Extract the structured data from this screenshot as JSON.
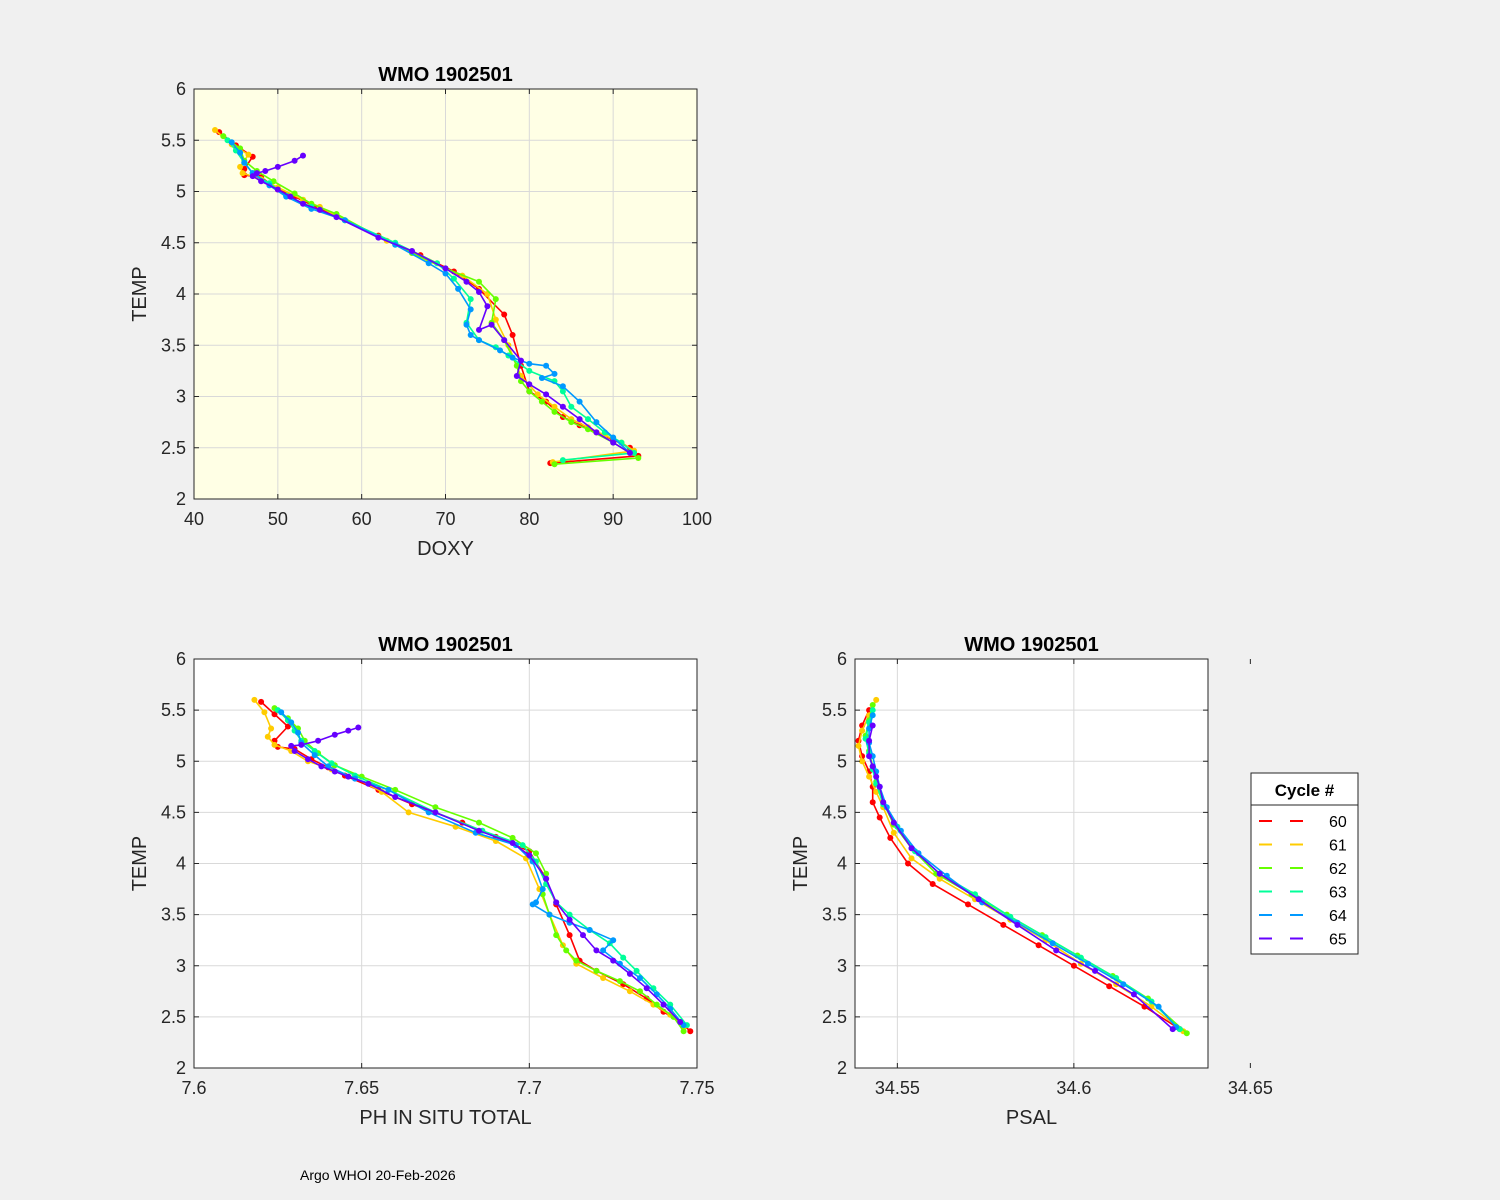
{
  "footer": "Argo WHOI 20-Feb-2026",
  "legend": {
    "title": "Cycle #",
    "placement": "right of lower-right panel",
    "entries": [
      {
        "label": "60",
        "color": "#ff0000"
      },
      {
        "label": "61",
        "color": "#ffcc00"
      },
      {
        "label": "62",
        "color": "#66ff00"
      },
      {
        "label": "63",
        "color": "#00ff99"
      },
      {
        "label": "64",
        "color": "#0099ff"
      },
      {
        "label": "65",
        "color": "#6600ff"
      }
    ]
  },
  "chart_data": [
    {
      "type": "line",
      "title": "WMO 1902501",
      "xlabel": "DOXY",
      "ylabel": "TEMP",
      "xlim": [
        40,
        100
      ],
      "ylim": [
        2,
        6
      ],
      "xticks": [
        40,
        50,
        60,
        70,
        80,
        90,
        100
      ],
      "xtick_labels": [
        "40",
        "50",
        "60",
        "70",
        "80",
        "90",
        "100"
      ],
      "yticks": [
        2,
        2.5,
        3,
        3.5,
        4,
        4.5,
        5,
        5.5,
        6
      ],
      "ytick_labels": [
        "2",
        "2.5",
        "3",
        "3.5",
        "4",
        "4.5",
        "5",
        "5.5",
        "6"
      ],
      "grid": true,
      "background": "#ffffe5",
      "series": [
        {
          "name": "60",
          "color": "#ff0000",
          "x": [
            43,
            45,
            47,
            46,
            46,
            48,
            50,
            52,
            54,
            57,
            62,
            67,
            71,
            74,
            77,
            78,
            79,
            80,
            82,
            84,
            86,
            88,
            90,
            92,
            93,
            82.5
          ],
          "y": [
            5.58,
            5.45,
            5.34,
            5.22,
            5.16,
            5.14,
            5.02,
            4.95,
            4.87,
            4.76,
            4.57,
            4.38,
            4.22,
            4.05,
            3.8,
            3.6,
            3.3,
            3.05,
            2.95,
            2.8,
            2.72,
            2.65,
            2.58,
            2.5,
            2.42,
            2.35
          ]
        },
        {
          "name": "61",
          "color": "#ffcc00",
          "x": [
            42.5,
            44.5,
            46.5,
            45.5,
            45.8,
            48,
            50,
            53,
            55,
            58,
            63,
            68,
            72,
            75,
            76,
            77.5,
            79,
            81,
            83,
            85,
            87,
            89,
            91,
            92.5,
            82.8
          ],
          "y": [
            5.6,
            5.46,
            5.36,
            5.24,
            5.18,
            5.12,
            5.04,
            4.92,
            4.85,
            4.72,
            4.52,
            4.32,
            4.18,
            4.0,
            3.75,
            3.5,
            3.2,
            3.02,
            2.9,
            2.78,
            2.7,
            2.62,
            2.55,
            2.47,
            2.36
          ]
        },
        {
          "name": "62",
          "color": "#66ff00",
          "x": [
            43.5,
            45.5,
            46,
            47.5,
            49.5,
            52,
            54,
            57,
            62,
            66,
            70,
            74,
            76,
            75.5,
            77,
            78.5,
            79,
            80,
            81.5,
            83,
            85,
            87,
            90,
            93,
            83
          ],
          "y": [
            5.54,
            5.42,
            5.3,
            5.2,
            5.1,
            4.98,
            4.88,
            4.78,
            4.56,
            4.4,
            4.25,
            4.12,
            3.95,
            3.72,
            3.55,
            3.3,
            3.15,
            3.05,
            2.95,
            2.85,
            2.75,
            2.68,
            2.55,
            2.4,
            2.34
          ]
        },
        {
          "name": "63",
          "color": "#00ff99",
          "x": [
            44,
            45,
            46,
            47,
            49,
            51,
            54,
            58,
            64,
            69,
            71,
            73,
            72.5,
            74,
            76,
            77.5,
            80,
            83,
            84,
            85,
            87,
            89,
            91,
            92.5,
            84
          ],
          "y": [
            5.5,
            5.4,
            5.28,
            5.18,
            5.08,
            4.96,
            4.85,
            4.72,
            4.5,
            4.3,
            4.15,
            3.95,
            3.72,
            3.55,
            3.48,
            3.4,
            3.25,
            3.15,
            3.05,
            2.9,
            2.78,
            2.65,
            2.55,
            2.45,
            2.38
          ]
        },
        {
          "name": "64",
          "color": "#0099ff",
          "x": [
            44.5,
            45.5,
            46,
            47,
            49,
            51,
            54,
            58,
            64,
            68,
            70,
            71.5,
            73,
            72.5,
            73,
            74,
            76.5,
            78,
            80,
            82,
            83,
            81.5,
            84,
            86,
            88,
            90,
            92
          ],
          "y": [
            5.48,
            5.38,
            5.28,
            5.18,
            5.06,
            4.95,
            4.83,
            4.72,
            4.48,
            4.3,
            4.2,
            4.05,
            3.85,
            3.7,
            3.6,
            3.55,
            3.45,
            3.38,
            3.32,
            3.3,
            3.22,
            3.18,
            3.1,
            2.95,
            2.75,
            2.6,
            2.45
          ]
        },
        {
          "name": "65",
          "color": "#6600ff",
          "x": [
            53,
            52,
            50,
            48.5,
            47.5,
            47,
            48,
            50,
            51.5,
            53,
            55,
            57,
            62,
            66,
            70,
            72.5,
            74,
            75,
            74,
            75.5,
            77,
            79,
            78.5,
            80,
            82,
            84,
            86,
            88,
            90,
            92
          ],
          "y": [
            5.35,
            5.3,
            5.24,
            5.2,
            5.18,
            5.15,
            5.1,
            5.02,
            4.95,
            4.88,
            4.82,
            4.75,
            4.55,
            4.42,
            4.25,
            4.12,
            4.02,
            3.88,
            3.65,
            3.7,
            3.55,
            3.35,
            3.2,
            3.12,
            3.02,
            2.9,
            2.78,
            2.65,
            2.55,
            2.45
          ]
        }
      ]
    },
    {
      "type": "line",
      "title": "WMO 1902501",
      "xlabel": "PH IN SITU TOTAL",
      "ylabel": "TEMP",
      "xlim": [
        7.6,
        7.75
      ],
      "ylim": [
        2,
        6
      ],
      "xticks": [
        7.6,
        7.65,
        7.7,
        7.75
      ],
      "xtick_labels": [
        "7.6",
        "7.65",
        "7.7",
        "7.75"
      ],
      "yticks": [
        2,
        2.5,
        3,
        3.5,
        4,
        4.5,
        5,
        5.5,
        6
      ],
      "ytick_labels": [
        "2",
        "2.5",
        "3",
        "3.5",
        "4",
        "4.5",
        "5",
        "5.5",
        "6"
      ],
      "grid": true,
      "background": "#ffffff",
      "series": [
        {
          "name": "60",
          "color": "#ff0000",
          "x": [
            7.62,
            7.624,
            7.628,
            7.624,
            7.625,
            7.63,
            7.635,
            7.64,
            7.645,
            7.655,
            7.665,
            7.68,
            7.69,
            7.7,
            7.705,
            7.708,
            7.712,
            7.715,
            7.72,
            7.728,
            7.735,
            7.74,
            7.745,
            7.748
          ],
          "y": [
            5.58,
            5.46,
            5.34,
            5.2,
            5.14,
            5.12,
            5.02,
            4.94,
            4.86,
            4.72,
            4.58,
            4.4,
            4.26,
            4.12,
            3.85,
            3.6,
            3.3,
            3.05,
            2.95,
            2.82,
            2.68,
            2.55,
            2.45,
            2.36
          ]
        },
        {
          "name": "61",
          "color": "#ffcc00",
          "x": [
            7.618,
            7.621,
            7.623,
            7.622,
            7.624,
            7.629,
            7.634,
            7.641,
            7.648,
            7.656,
            7.664,
            7.678,
            7.69,
            7.699,
            7.703,
            7.706,
            7.71,
            7.714,
            7.722,
            7.73,
            7.737,
            7.742,
            7.746
          ],
          "y": [
            5.6,
            5.48,
            5.32,
            5.24,
            5.16,
            5.1,
            5.0,
            4.92,
            4.84,
            4.7,
            4.5,
            4.36,
            4.22,
            4.05,
            3.75,
            3.5,
            3.2,
            3.02,
            2.88,
            2.75,
            2.62,
            2.52,
            2.4
          ]
        },
        {
          "name": "62",
          "color": "#66ff00",
          "x": [
            7.624,
            7.628,
            7.631,
            7.633,
            7.637,
            7.642,
            7.65,
            7.66,
            7.672,
            7.685,
            7.695,
            7.702,
            7.705,
            7.704,
            7.706,
            7.708,
            7.711,
            7.714,
            7.72,
            7.727,
            7.733,
            7.738,
            7.743,
            7.746
          ],
          "y": [
            5.52,
            5.42,
            5.32,
            5.2,
            5.08,
            4.96,
            4.85,
            4.72,
            4.55,
            4.4,
            4.25,
            4.1,
            3.9,
            3.7,
            3.5,
            3.3,
            3.15,
            3.05,
            2.95,
            2.85,
            2.75,
            2.62,
            2.5,
            2.36
          ]
        },
        {
          "name": "63",
          "color": "#00ff99",
          "x": [
            7.625,
            7.628,
            7.63,
            7.632,
            7.636,
            7.641,
            7.648,
            7.658,
            7.672,
            7.686,
            7.698,
            7.702,
            7.705,
            7.708,
            7.712,
            7.718,
            7.724,
            7.728,
            7.732,
            7.737,
            7.742,
            7.747
          ],
          "y": [
            5.5,
            5.4,
            5.3,
            5.2,
            5.1,
            4.98,
            4.86,
            4.72,
            4.5,
            4.32,
            4.18,
            4.02,
            3.8,
            3.62,
            3.5,
            3.35,
            3.22,
            3.08,
            2.95,
            2.78,
            2.62,
            2.42
          ]
        },
        {
          "name": "64",
          "color": "#0099ff",
          "x": [
            7.626,
            7.629,
            7.631,
            7.632,
            7.636,
            7.64,
            7.648,
            7.658,
            7.67,
            7.684,
            7.696,
            7.701,
            7.704,
            7.702,
            7.701,
            7.706,
            7.712,
            7.718,
            7.725,
            7.722,
            7.727,
            7.733,
            7.738,
            7.742,
            7.746
          ],
          "y": [
            5.48,
            5.38,
            5.28,
            5.18,
            5.06,
            4.95,
            4.83,
            4.72,
            4.5,
            4.3,
            4.18,
            4.02,
            3.75,
            3.62,
            3.6,
            3.5,
            3.42,
            3.35,
            3.25,
            3.15,
            3.02,
            2.88,
            2.72,
            2.58,
            2.42
          ]
        },
        {
          "name": "65",
          "color": "#6600ff",
          "x": [
            7.649,
            7.646,
            7.642,
            7.637,
            7.632,
            7.629,
            7.63,
            7.634,
            7.638,
            7.642,
            7.646,
            7.652,
            7.66,
            7.672,
            7.685,
            7.695,
            7.7,
            7.705,
            7.708,
            7.712,
            7.716,
            7.72,
            7.725,
            7.73,
            7.735,
            7.74,
            7.745
          ],
          "y": [
            5.33,
            5.3,
            5.26,
            5.2,
            5.16,
            5.15,
            5.1,
            5.02,
            4.95,
            4.9,
            4.85,
            4.78,
            4.65,
            4.5,
            4.32,
            4.2,
            4.08,
            3.85,
            3.62,
            3.45,
            3.3,
            3.15,
            3.05,
            2.92,
            2.78,
            2.62,
            2.45
          ]
        }
      ]
    },
    {
      "type": "line",
      "title": "WMO 1902501",
      "xlabel": "PSAL",
      "ylabel": "TEMP",
      "xlim": [
        34.538,
        34.638
      ],
      "ylim": [
        2,
        6
      ],
      "xticks": [
        34.55,
        34.6,
        34.65
      ],
      "xtick_labels": [
        "34.55",
        "34.6",
        "34.65"
      ],
      "yticks": [
        2,
        2.5,
        3,
        3.5,
        4,
        4.5,
        5,
        5.5,
        6
      ],
      "ytick_labels": [
        "2",
        "2.5",
        "3",
        "3.5",
        "4",
        "4.5",
        "5",
        "5.5",
        "6"
      ],
      "grid": true,
      "background": "#ffffff",
      "series": [
        {
          "name": "60",
          "color": "#ff0000",
          "x": [
            34.542,
            34.54,
            34.539,
            34.54,
            34.542,
            34.543,
            34.543,
            34.545,
            34.548,
            34.553,
            34.56,
            34.57,
            34.58,
            34.59,
            34.6,
            34.61,
            34.62,
            34.63
          ],
          "y": [
            5.5,
            5.35,
            5.2,
            5.05,
            4.9,
            4.75,
            4.6,
            4.45,
            4.25,
            4.0,
            3.8,
            3.6,
            3.4,
            3.2,
            3.0,
            2.8,
            2.6,
            2.38
          ]
        },
        {
          "name": "61",
          "color": "#ffcc00",
          "x": [
            34.544,
            34.542,
            34.54,
            34.539,
            34.54,
            34.542,
            34.544,
            34.546,
            34.549,
            34.554,
            34.562,
            34.572,
            34.582,
            34.592,
            34.602,
            34.612,
            34.622,
            34.631
          ],
          "y": [
            5.6,
            5.45,
            5.3,
            5.15,
            5.0,
            4.85,
            4.7,
            4.55,
            4.3,
            4.05,
            3.85,
            3.65,
            3.45,
            3.25,
            3.02,
            2.82,
            2.6,
            2.36
          ]
        },
        {
          "name": "62",
          "color": "#66ff00",
          "x": [
            34.543,
            34.542,
            34.541,
            34.542,
            34.543,
            34.544,
            34.546,
            34.549,
            34.554,
            34.561,
            34.571,
            34.581,
            34.591,
            34.601,
            34.611,
            34.621,
            34.632
          ],
          "y": [
            5.55,
            5.4,
            5.25,
            5.1,
            4.95,
            4.8,
            4.6,
            4.38,
            4.15,
            3.9,
            3.7,
            3.5,
            3.3,
            3.1,
            2.9,
            2.68,
            2.34
          ]
        },
        {
          "name": "63",
          "color": "#00ff99",
          "x": [
            34.543,
            34.542,
            34.541,
            34.542,
            34.543,
            34.544,
            34.546,
            34.55,
            34.555,
            34.562,
            34.572,
            34.582,
            34.592,
            34.602,
            34.612,
            34.622,
            34.63
          ],
          "y": [
            5.5,
            5.38,
            5.22,
            5.08,
            4.92,
            4.78,
            4.58,
            4.36,
            4.12,
            3.9,
            3.7,
            3.48,
            3.28,
            3.08,
            2.88,
            2.65,
            2.38
          ]
        },
        {
          "name": "64",
          "color": "#0099ff",
          "x": [
            34.543,
            34.542,
            34.542,
            34.543,
            34.544,
            34.545,
            34.547,
            34.551,
            34.556,
            34.564,
            34.574,
            34.584,
            34.594,
            34.604,
            34.614,
            34.624,
            34.629
          ],
          "y": [
            5.45,
            5.32,
            5.18,
            5.05,
            4.9,
            4.75,
            4.55,
            4.32,
            4.1,
            3.88,
            3.62,
            3.42,
            3.22,
            3.02,
            2.82,
            2.6,
            2.4
          ]
        },
        {
          "name": "65",
          "color": "#6600ff",
          "x": [
            34.543,
            34.542,
            34.542,
            34.543,
            34.544,
            34.545,
            34.546,
            34.549,
            34.554,
            34.562,
            34.573,
            34.584,
            34.595,
            34.606,
            34.617,
            34.628
          ],
          "y": [
            5.35,
            5.2,
            5.05,
            4.95,
            4.85,
            4.75,
            4.6,
            4.4,
            4.15,
            3.9,
            3.65,
            3.4,
            3.15,
            2.95,
            2.72,
            2.38
          ]
        }
      ]
    }
  ]
}
